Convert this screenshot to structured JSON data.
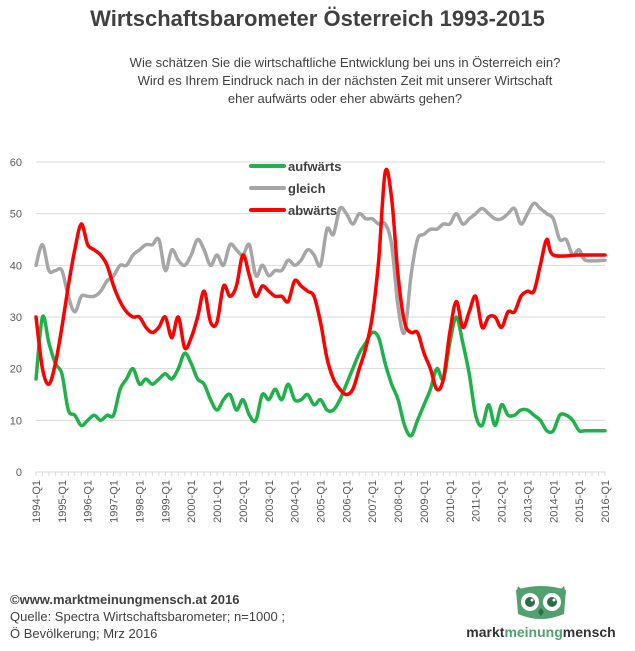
{
  "chart_data": {
    "type": "line",
    "title": "Wirtschaftsbarometer Österreich 1993-2015",
    "subtitle": [
      "Wie schätzen Sie die wirtschaftliche Entwicklung bei uns in Österreich ein?",
      "Wird es Ihrem Eindruck nach in der nächsten Zeit mit unserer Wirtschaft",
      "eher aufwärts oder eher abwärts gehen?"
    ],
    "ylim": [
      0,
      60
    ],
    "yticks": [
      "0",
      "10",
      "20",
      "30",
      "40",
      "50",
      "60"
    ],
    "x_start": "1994-Q1",
    "x_end": "2016-Q1",
    "xtick_labels": [
      "1994-Q1",
      "1995-Q1",
      "1996-Q1",
      "1997-Q1",
      "1998-Q1",
      "1999-Q1",
      "2000-Q1",
      "2001-Q1",
      "2002-Q1",
      "2003-Q1",
      "2004-Q1",
      "2005-Q1",
      "2006-Q1",
      "2007-Q1",
      "2008-Q1",
      "2009-Q1",
      "2010-Q1",
      "2011-Q1",
      "2012-Q1",
      "2013-Q1",
      "2014-Q1",
      "2015-Q1",
      "2016-Q1"
    ],
    "grid": true,
    "legend_position": "top-center",
    "series": [
      {
        "name": "aufwärts",
        "color": "#1fb14a",
        "points": [
          [
            "1994-Q1",
            18
          ],
          [
            "1994-Q2",
            30
          ],
          [
            "1994-Q3",
            25
          ],
          [
            "1994-Q4",
            21
          ],
          [
            "1995-Q1",
            19
          ],
          [
            "1995-Q2",
            12
          ],
          [
            "1995-Q3",
            11
          ],
          [
            "1995-Q4",
            9
          ],
          [
            "1996-Q1",
            10
          ],
          [
            "1996-Q2",
            11
          ],
          [
            "1996-Q3",
            10
          ],
          [
            "1996-Q4",
            11
          ],
          [
            "1997-Q1",
            11
          ],
          [
            "1997-Q2",
            16
          ],
          [
            "1997-Q3",
            18
          ],
          [
            "1997-Q4",
            20
          ],
          [
            "1998-Q1",
            17
          ],
          [
            "1998-Q2",
            18
          ],
          [
            "1998-Q3",
            17
          ],
          [
            "1998-Q4",
            18
          ],
          [
            "1999-Q1",
            19
          ],
          [
            "1999-Q2",
            18
          ],
          [
            "1999-Q3",
            20
          ],
          [
            "1999-Q4",
            23
          ],
          [
            "2000-Q1",
            21
          ],
          [
            "2000-Q2",
            18
          ],
          [
            "2000-Q3",
            17
          ],
          [
            "2000-Q4",
            14
          ],
          [
            "2001-Q1",
            12
          ],
          [
            "2001-Q2",
            14
          ],
          [
            "2001-Q3",
            15
          ],
          [
            "2001-Q4",
            12
          ],
          [
            "2002-Q1",
            14
          ],
          [
            "2002-Q2",
            11
          ],
          [
            "2002-Q3",
            10
          ],
          [
            "2002-Q4",
            15
          ],
          [
            "2003-Q1",
            14
          ],
          [
            "2003-Q2",
            16
          ],
          [
            "2003-Q3",
            14
          ],
          [
            "2003-Q4",
            17
          ],
          [
            "2004-Q1",
            14
          ],
          [
            "2004-Q2",
            14
          ],
          [
            "2004-Q3",
            15
          ],
          [
            "2004-Q4",
            13
          ],
          [
            "2005-Q1",
            14
          ],
          [
            "2005-Q2",
            12
          ],
          [
            "2005-Q3",
            12
          ],
          [
            "2005-Q4",
            14
          ],
          [
            "2006-Q1",
            17
          ],
          [
            "2006-Q2",
            20
          ],
          [
            "2006-Q3",
            23
          ],
          [
            "2006-Q4",
            25
          ],
          [
            "2007-Q1",
            27
          ],
          [
            "2007-Q2",
            26
          ],
          [
            "2007-Q3",
            21
          ],
          [
            "2007-Q4",
            17
          ],
          [
            "2008-Q1",
            14
          ],
          [
            "2008-Q2",
            9
          ],
          [
            "2008-Q3",
            7
          ],
          [
            "2008-Q4",
            10
          ],
          [
            "2009-Q1",
            13
          ],
          [
            "2009-Q2",
            16
          ],
          [
            "2009-Q3",
            20
          ],
          [
            "2009-Q4",
            18
          ],
          [
            "2010-Q1",
            25
          ],
          [
            "2010-Q2",
            30
          ],
          [
            "2010-Q3",
            25
          ],
          [
            "2010-Q4",
            19
          ],
          [
            "2011-Q1",
            11
          ],
          [
            "2011-Q2",
            9
          ],
          [
            "2011-Q3",
            13
          ],
          [
            "2011-Q4",
            9
          ],
          [
            "2012-Q1",
            13
          ],
          [
            "2012-Q2",
            11
          ],
          [
            "2012-Q3",
            11
          ],
          [
            "2012-Q4",
            12
          ],
          [
            "2013-Q1",
            12
          ],
          [
            "2013-Q2",
            11
          ],
          [
            "2013-Q3",
            10
          ],
          [
            "2013-Q4",
            8
          ],
          [
            "2014-Q1",
            8
          ],
          [
            "2014-Q2",
            11
          ],
          [
            "2014-Q3",
            11
          ],
          [
            "2014-Q4",
            10
          ],
          [
            "2015-Q1",
            8
          ],
          [
            "2015-Q2",
            8
          ],
          [
            "2016-Q1",
            8
          ]
        ]
      },
      {
        "name": "gleich",
        "color": "#a6a6a6",
        "points": [
          [
            "1994-Q1",
            40
          ],
          [
            "1994-Q2",
            44
          ],
          [
            "1994-Q3",
            39
          ],
          [
            "1994-Q4",
            39
          ],
          [
            "1995-Q1",
            39
          ],
          [
            "1995-Q2",
            34
          ],
          [
            "1995-Q3",
            31
          ],
          [
            "1995-Q4",
            34
          ],
          [
            "1996-Q1",
            34
          ],
          [
            "1996-Q2",
            34
          ],
          [
            "1996-Q3",
            35
          ],
          [
            "1996-Q4",
            37
          ],
          [
            "1997-Q1",
            38
          ],
          [
            "1997-Q2",
            40
          ],
          [
            "1997-Q3",
            40
          ],
          [
            "1997-Q4",
            42
          ],
          [
            "1998-Q1",
            43
          ],
          [
            "1998-Q2",
            44
          ],
          [
            "1998-Q3",
            44
          ],
          [
            "1998-Q4",
            45
          ],
          [
            "1999-Q1",
            39
          ],
          [
            "1999-Q2",
            43
          ],
          [
            "1999-Q3",
            41
          ],
          [
            "1999-Q4",
            40
          ],
          [
            "2000-Q1",
            42
          ],
          [
            "2000-Q2",
            45
          ],
          [
            "2000-Q3",
            43
          ],
          [
            "2000-Q4",
            40
          ],
          [
            "2001-Q1",
            42
          ],
          [
            "2001-Q2",
            40
          ],
          [
            "2001-Q3",
            44
          ],
          [
            "2001-Q4",
            43
          ],
          [
            "2002-Q1",
            42
          ],
          [
            "2002-Q2",
            44
          ],
          [
            "2002-Q3",
            38
          ],
          [
            "2002-Q4",
            40
          ],
          [
            "2003-Q1",
            38
          ],
          [
            "2003-Q2",
            39
          ],
          [
            "2003-Q3",
            39
          ],
          [
            "2003-Q4",
            41
          ],
          [
            "2004-Q1",
            40
          ],
          [
            "2004-Q2",
            41
          ],
          [
            "2004-Q3",
            43
          ],
          [
            "2004-Q4",
            42
          ],
          [
            "2005-Q1",
            40
          ],
          [
            "2005-Q2",
            47
          ],
          [
            "2005-Q3",
            46
          ],
          [
            "2005-Q4",
            51
          ],
          [
            "2006-Q1",
            50
          ],
          [
            "2006-Q2",
            48
          ],
          [
            "2006-Q3",
            50
          ],
          [
            "2006-Q4",
            49
          ],
          [
            "2007-Q1",
            49
          ],
          [
            "2007-Q2",
            48
          ],
          [
            "2007-Q3",
            48
          ],
          [
            "2007-Q4",
            44
          ],
          [
            "2008-Q1",
            32
          ],
          [
            "2008-Q2",
            27
          ],
          [
            "2008-Q3",
            38
          ],
          [
            "2008-Q4",
            45
          ],
          [
            "2009-Q1",
            46
          ],
          [
            "2009-Q2",
            47
          ],
          [
            "2009-Q3",
            47
          ],
          [
            "2009-Q4",
            48
          ],
          [
            "2010-Q1",
            48
          ],
          [
            "2010-Q2",
            50
          ],
          [
            "2010-Q3",
            48
          ],
          [
            "2010-Q4",
            49
          ],
          [
            "2011-Q1",
            50
          ],
          [
            "2011-Q2",
            51
          ],
          [
            "2011-Q3",
            50
          ],
          [
            "2011-Q4",
            49
          ],
          [
            "2012-Q1",
            49
          ],
          [
            "2012-Q2",
            50
          ],
          [
            "2012-Q3",
            51
          ],
          [
            "2012-Q4",
            48
          ],
          [
            "2013-Q1",
            50
          ],
          [
            "2013-Q2",
            52
          ],
          [
            "2013-Q3",
            51
          ],
          [
            "2013-Q4",
            50
          ],
          [
            "2014-Q1",
            49
          ],
          [
            "2014-Q2",
            45
          ],
          [
            "2014-Q3",
            45
          ],
          [
            "2014-Q4",
            42
          ],
          [
            "2015-Q1",
            43
          ],
          [
            "2015-Q2",
            41
          ],
          [
            "2016-Q1",
            41
          ]
        ]
      },
      {
        "name": "abwärts",
        "color": "#ff0000",
        "points": [
          [
            "1994-Q1",
            30
          ],
          [
            "1994-Q2",
            20
          ],
          [
            "1994-Q3",
            17
          ],
          [
            "1994-Q4",
            21
          ],
          [
            "1995-Q1",
            28
          ],
          [
            "1995-Q2",
            36
          ],
          [
            "1995-Q3",
            43
          ],
          [
            "1995-Q4",
            48
          ],
          [
            "1996-Q1",
            44
          ],
          [
            "1996-Q2",
            43
          ],
          [
            "1996-Q3",
            42
          ],
          [
            "1996-Q4",
            40
          ],
          [
            "1997-Q1",
            36
          ],
          [
            "1997-Q2",
            33
          ],
          [
            "1997-Q3",
            31
          ],
          [
            "1997-Q4",
            30
          ],
          [
            "1998-Q1",
            30
          ],
          [
            "1998-Q2",
            28
          ],
          [
            "1998-Q3",
            27
          ],
          [
            "1998-Q4",
            28
          ],
          [
            "1999-Q1",
            30
          ],
          [
            "1999-Q2",
            26
          ],
          [
            "1999-Q3",
            30
          ],
          [
            "1999-Q4",
            24
          ],
          [
            "2000-Q1",
            26
          ],
          [
            "2000-Q2",
            30
          ],
          [
            "2000-Q3",
            35
          ],
          [
            "2000-Q4",
            29
          ],
          [
            "2001-Q1",
            29
          ],
          [
            "2001-Q2",
            36
          ],
          [
            "2001-Q3",
            34
          ],
          [
            "2001-Q4",
            36
          ],
          [
            "2002-Q1",
            42
          ],
          [
            "2002-Q2",
            38
          ],
          [
            "2002-Q3",
            34
          ],
          [
            "2002-Q4",
            36
          ],
          [
            "2003-Q1",
            35
          ],
          [
            "2003-Q2",
            34
          ],
          [
            "2003-Q3",
            34
          ],
          [
            "2003-Q4",
            33
          ],
          [
            "2004-Q1",
            37
          ],
          [
            "2004-Q2",
            36
          ],
          [
            "2004-Q3",
            35
          ],
          [
            "2004-Q4",
            34
          ],
          [
            "2005-Q1",
            29
          ],
          [
            "2005-Q2",
            22
          ],
          [
            "2005-Q3",
            18
          ],
          [
            "2005-Q4",
            16
          ],
          [
            "2006-Q1",
            15
          ],
          [
            "2006-Q2",
            16
          ],
          [
            "2006-Q3",
            20
          ],
          [
            "2006-Q4",
            24
          ],
          [
            "2007-Q1",
            30
          ],
          [
            "2007-Q2",
            41
          ],
          [
            "2007-Q3",
            58
          ],
          [
            "2007-Q4",
            53
          ],
          [
            "2008-Q1",
            38
          ],
          [
            "2008-Q2",
            29
          ],
          [
            "2008-Q3",
            27
          ],
          [
            "2008-Q4",
            27
          ],
          [
            "2009-Q1",
            23
          ],
          [
            "2009-Q2",
            20
          ],
          [
            "2009-Q3",
            16
          ],
          [
            "2009-Q4",
            18
          ],
          [
            "2010-Q1",
            27
          ],
          [
            "2010-Q2",
            33
          ],
          [
            "2010-Q3",
            28
          ],
          [
            "2010-Q4",
            31
          ],
          [
            "2011-Q1",
            34
          ],
          [
            "2011-Q2",
            28
          ],
          [
            "2011-Q3",
            30
          ],
          [
            "2011-Q4",
            30
          ],
          [
            "2012-Q1",
            28
          ],
          [
            "2012-Q2",
            31
          ],
          [
            "2012-Q3",
            31
          ],
          [
            "2012-Q4",
            34
          ],
          [
            "2013-Q1",
            35
          ],
          [
            "2013-Q2",
            35
          ],
          [
            "2013-Q3",
            40
          ],
          [
            "2013-Q4",
            45
          ],
          [
            "2014-Q1",
            42
          ],
          [
            "2015-Q1",
            42
          ],
          [
            "2016-Q1",
            42
          ]
        ]
      }
    ]
  },
  "footer": {
    "copyright": "©www.marktmeinungmensch.at 2016",
    "source_line1": "Quelle: Spectra  Wirtschaftsbarometer;  n=1000 ;",
    "source_line2": "Ö Bevölkerung;  Mrz 2016"
  },
  "logo": {
    "part1": "markt",
    "part2": "meinung",
    "part3": "mensch",
    "icon": "owl-icon",
    "color": "#52a06f"
  }
}
